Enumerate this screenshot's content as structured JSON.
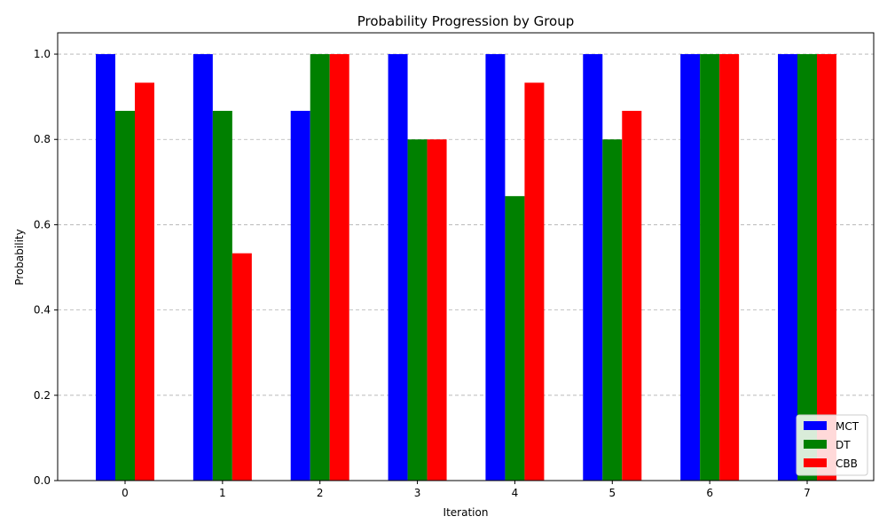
{
  "chart_data": {
    "type": "bar",
    "title": "Probability Progression by Group",
    "xlabel": "Iteration",
    "ylabel": "Probability",
    "categories": [
      "0",
      "1",
      "2",
      "3",
      "4",
      "5",
      "6",
      "7"
    ],
    "ylim": [
      0,
      1.05
    ],
    "yticks": [
      "0.0",
      "0.2",
      "0.4",
      "0.6",
      "0.8",
      "1.0"
    ],
    "grid": "y, dashed",
    "legend_position": "lower right",
    "series": [
      {
        "name": "MCT",
        "color": "#0000ff",
        "values": [
          1.0,
          1.0,
          0.867,
          1.0,
          1.0,
          1.0,
          1.0,
          1.0
        ]
      },
      {
        "name": "DT",
        "color": "#008000",
        "values": [
          0.867,
          0.867,
          1.0,
          0.8,
          0.667,
          0.8,
          1.0,
          1.0
        ]
      },
      {
        "name": "CBB",
        "color": "#ff0000",
        "values": [
          0.933,
          0.533,
          1.0,
          0.8,
          0.933,
          0.867,
          1.0,
          1.0
        ]
      }
    ]
  }
}
